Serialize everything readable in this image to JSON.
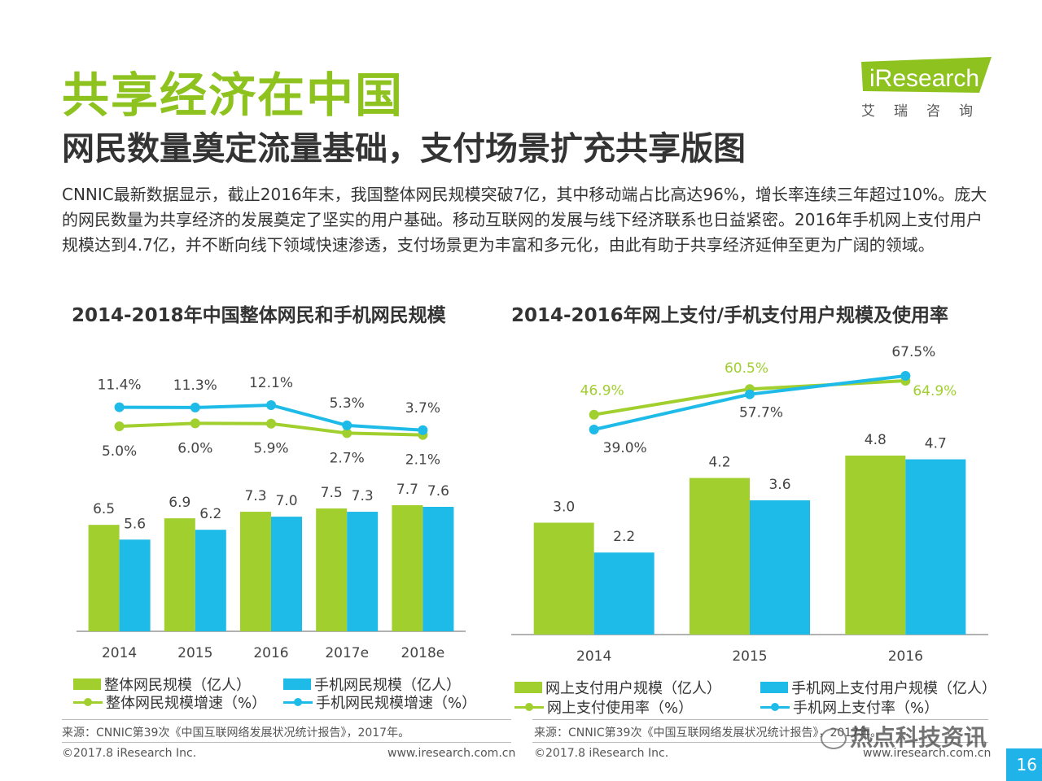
{
  "page": {
    "title": "共享经济在中国",
    "subtitle": "网民数量奠定流量基础，支付场景扩充共享版图",
    "body": "CNNIC最新数据显示，截止2016年末，我国整体网民规模突破7亿，其中移动端占比高达96%，增长率连续三年超过10%。庞大的网民数量为共享经济的发展奠定了坚实的用户基础。移动互联网的发展与线下经济联系也日益紧密。2016年手机网上支付用户规模达到4.7亿，并不断向线下领域快速渗透，支付场景更为丰富和多元化，由此有助于共享经济延伸至更为广阔的领域。",
    "logo_text": "iResearch",
    "logo_cn": "艾瑞咨询",
    "page_number": "16",
    "watermark": "热点科技资讯"
  },
  "colors": {
    "green": "#a0cf2e",
    "blue": "#1ebbe9",
    "title_green": "#8dc21f"
  },
  "left_footer": {
    "source": "来源：CNNIC第39次《中国互联网络发展状况统计报告》，2017年。",
    "copyright": "©2017.8 iResearch Inc.",
    "url": "www.iresearch.com.cn"
  },
  "right_footer": {
    "source": "来源：CNNIC第39次《中国互联网络发展状况统计报告》，2017年。",
    "copyright": "©2017.8 iResearch Inc.",
    "url": "www.iresearch.com.cn"
  },
  "chart_data": [
    {
      "type": "bar",
      "title": "2014-2018年中国整体网民和手机网民规模",
      "categories": [
        "2014",
        "2015",
        "2016",
        "2017e",
        "2018e"
      ],
      "series": [
        {
          "name": "整体网民规模（亿人）",
          "kind": "bar",
          "color": "#a0cf2e",
          "values": [
            6.5,
            6.9,
            7.3,
            7.5,
            7.7
          ],
          "labels": [
            "6.5",
            "6.9",
            "7.3",
            "7.5",
            "7.7"
          ]
        },
        {
          "name": "手机网民规模（亿人）",
          "kind": "bar",
          "color": "#1ebbe9",
          "values": [
            5.6,
            6.2,
            7.0,
            7.3,
            7.6
          ],
          "labels": [
            "5.6",
            "6.2",
            "7.0",
            "7.3",
            "7.6"
          ]
        },
        {
          "name": "整体网民规模增速（%）",
          "kind": "line",
          "color": "#a0cf2e",
          "values": [
            5.0,
            6.0,
            5.9,
            2.7,
            2.1
          ],
          "labels": [
            "5.0%",
            "6.0%",
            "5.9%",
            "2.7%",
            "2.1%"
          ]
        },
        {
          "name": "手机网民规模增速（%）",
          "kind": "line",
          "color": "#1ebbe9",
          "values": [
            11.4,
            11.3,
            12.1,
            5.3,
            3.7
          ],
          "labels": [
            "11.4%",
            "11.3%",
            "12.1%",
            "5.3%",
            "3.7%"
          ]
        }
      ],
      "bar_ylim": [
        0,
        8.5
      ],
      "line_ylim": [
        -30,
        16
      ],
      "grid": false,
      "legend": "bottom"
    },
    {
      "type": "bar",
      "title": "2014-2016年网上支付/手机支付用户规模及使用率",
      "categories": [
        "2014",
        "2015",
        "2016"
      ],
      "series": [
        {
          "name": "网上支付用户规模（亿人）",
          "kind": "bar",
          "color": "#a0cf2e",
          "values": [
            3.0,
            4.2,
            4.8
          ],
          "labels": [
            "3.0",
            "4.2",
            "4.8"
          ]
        },
        {
          "name": "手机网上支付用户规模（亿人）",
          "kind": "bar",
          "color": "#1ebbe9",
          "values": [
            2.2,
            3.6,
            4.7
          ],
          "labels": [
            "2.2",
            "3.6",
            "4.7"
          ]
        },
        {
          "name": "网上支付使用率（%）",
          "kind": "line",
          "color": "#a0cf2e",
          "values": [
            46.9,
            60.5,
            64.9
          ],
          "labels": [
            "46.9%",
            "60.5%",
            "64.9%"
          ]
        },
        {
          "name": "手机网上支付率（%）",
          "kind": "line",
          "color": "#1ebbe9",
          "values": [
            39.0,
            57.7,
            67.5
          ],
          "labels": [
            "39.0%",
            "57.7%",
            "67.5%"
          ]
        }
      ],
      "bar_ylim": [
        0,
        6
      ],
      "line_ylim": [
        -10,
        80
      ],
      "grid": false,
      "legend": "bottom"
    }
  ]
}
